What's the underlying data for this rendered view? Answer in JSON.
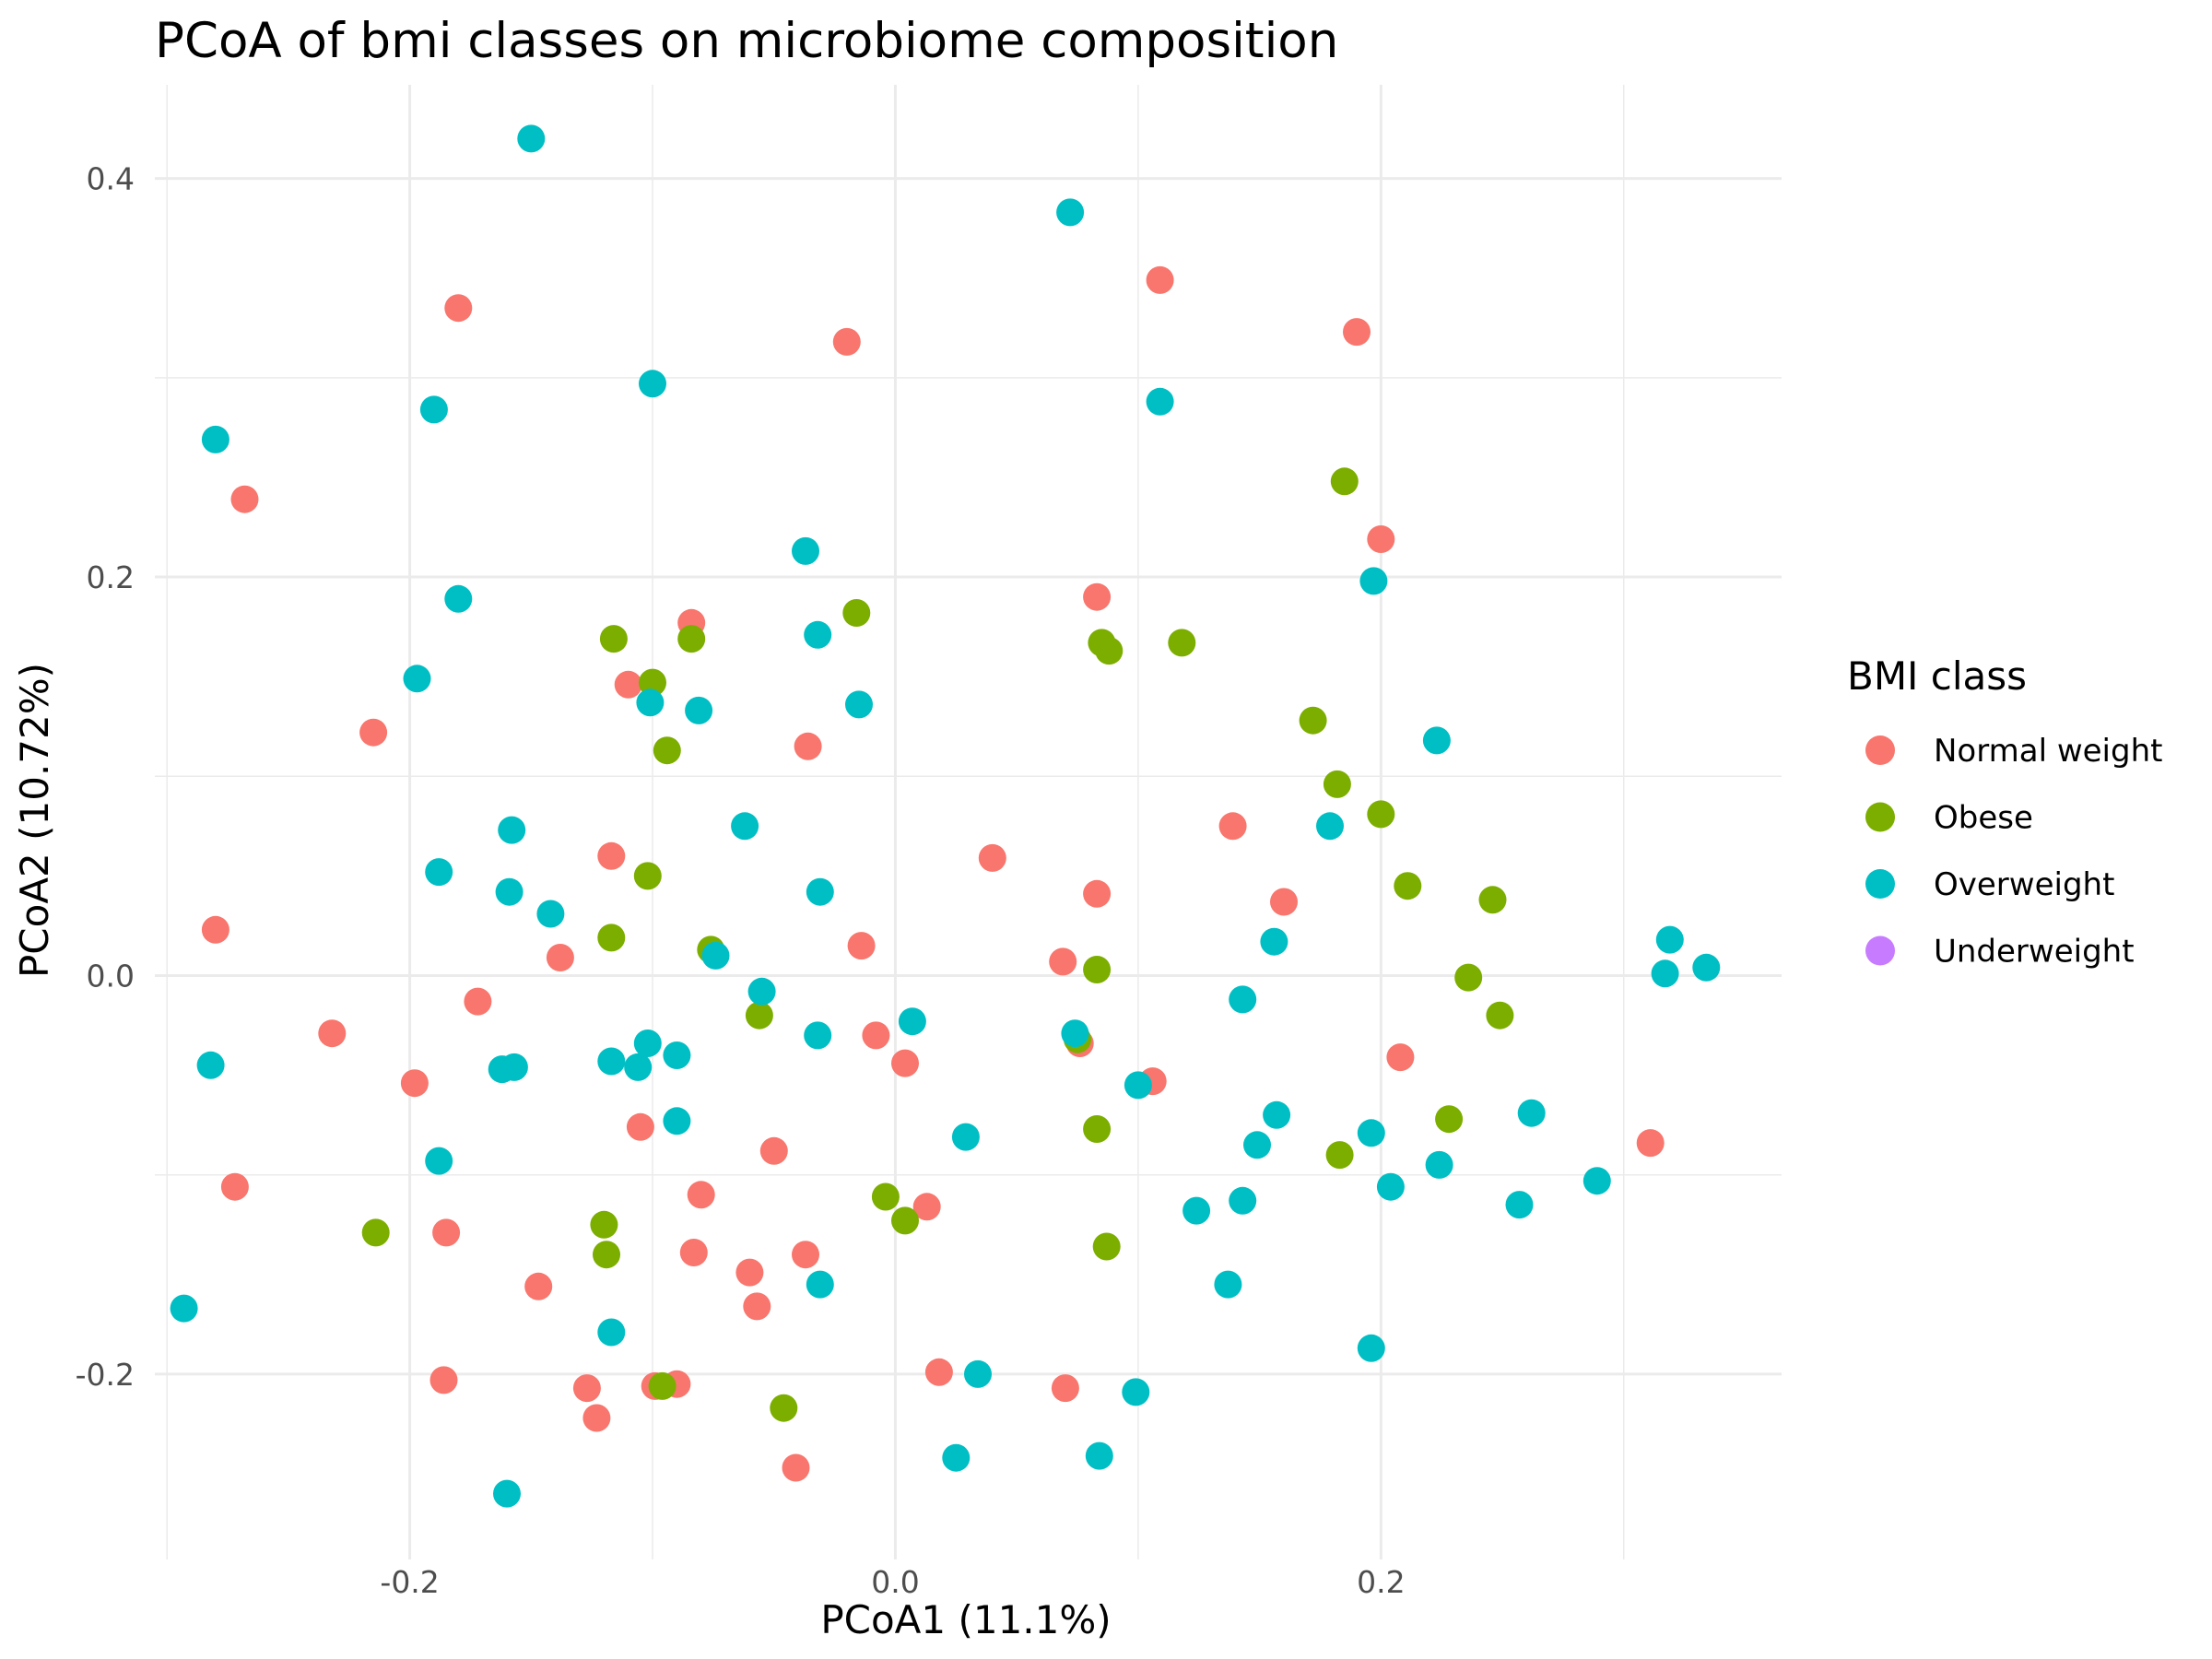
{
  "chart_data": {
    "type": "scatter",
    "title": "PCoA of bmi classes on microbiome composition",
    "xlabel": "PCoA1 (11.1%)",
    "ylabel": "PCoA2 (10.72%)",
    "xlim": [
      -0.305,
      0.365
    ],
    "ylim": [
      -0.293,
      0.447
    ],
    "x_ticks": [
      -0.2,
      0.0,
      0.2
    ],
    "y_ticks": [
      0.4,
      0.2,
      0.0,
      -0.2
    ],
    "x_tick_labels": [
      "-0.2",
      "0.0",
      "0.2"
    ],
    "y_tick_labels": [
      "0.4",
      "0.2",
      "0.0",
      "-0.2"
    ],
    "grid": true,
    "legend": {
      "title": "BMI class",
      "position": "right",
      "entries": [
        "Normal weight",
        "Obese",
        "Overweight",
        "Underweight"
      ]
    },
    "series": [
      {
        "name": "Normal weight",
        "color": "#F8766D",
        "points": [
          [
            -0.18,
            0.335
          ],
          [
            -0.02,
            0.318
          ],
          [
            0.109,
            0.349
          ],
          [
            0.19,
            0.323
          ],
          [
            -0.268,
            0.239
          ],
          [
            0.2,
            0.219
          ],
          [
            -0.084,
            0.177
          ],
          [
            0.083,
            0.19
          ],
          [
            -0.11,
            0.146
          ],
          [
            -0.215,
            0.122
          ],
          [
            -0.036,
            0.115
          ],
          [
            0.139,
            0.075
          ],
          [
            -0.117,
            0.06
          ],
          [
            0.04,
            0.059
          ],
          [
            0.083,
            0.041
          ],
          [
            0.16,
            0.037
          ],
          [
            -0.28,
            0.023
          ],
          [
            -0.014,
            0.015
          ],
          [
            -0.138,
            0.009
          ],
          [
            0.069,
            0.007
          ],
          [
            -0.172,
            -0.013
          ],
          [
            -0.232,
            -0.029
          ],
          [
            -0.008,
            -0.03
          ],
          [
            0.076,
            -0.034
          ],
          [
            0.004,
            -0.044
          ],
          [
            -0.198,
            -0.054
          ],
          [
            0.106,
            -0.053
          ],
          [
            0.208,
            -0.041
          ],
          [
            -0.105,
            -0.076
          ],
          [
            -0.05,
            -0.088
          ],
          [
            0.311,
            -0.084
          ],
          [
            -0.272,
            -0.106
          ],
          [
            -0.08,
            -0.11
          ],
          [
            0.013,
            -0.116
          ],
          [
            -0.185,
            -0.129
          ],
          [
            -0.083,
            -0.139
          ],
          [
            -0.06,
            -0.149
          ],
          [
            -0.037,
            -0.14
          ],
          [
            -0.147,
            -0.156
          ],
          [
            -0.057,
            -0.166
          ],
          [
            -0.186,
            -0.203
          ],
          [
            -0.127,
            -0.207
          ],
          [
            0.018,
            -0.199
          ],
          [
            0.07,
            -0.207
          ],
          [
            -0.099,
            -0.206
          ],
          [
            -0.09,
            -0.205
          ],
          [
            -0.123,
            -0.222
          ],
          [
            -0.041,
            -0.247
          ]
        ]
      },
      {
        "name": "Obese",
        "color": "#7CAE00",
        "points": [
          [
            0.185,
            0.248
          ],
          [
            -0.016,
            0.182
          ],
          [
            -0.116,
            0.169
          ],
          [
            -0.084,
            0.169
          ],
          [
            0.085,
            0.167
          ],
          [
            0.118,
            0.167
          ],
          [
            0.088,
            0.163
          ],
          [
            -0.1,
            0.147
          ],
          [
            0.172,
            0.128
          ],
          [
            -0.094,
            0.113
          ],
          [
            0.182,
            0.096
          ],
          [
            0.2,
            0.081
          ],
          [
            -0.102,
            0.05
          ],
          [
            0.211,
            0.045
          ],
          [
            0.246,
            0.038
          ],
          [
            -0.117,
            0.019
          ],
          [
            -0.076,
            0.013
          ],
          [
            0.083,
            0.003
          ],
          [
            0.236,
            -0.001
          ],
          [
            -0.056,
            -0.02
          ],
          [
            0.249,
            -0.02
          ],
          [
            0.075,
            -0.032
          ],
          [
            0.228,
            -0.072
          ],
          [
            0.083,
            -0.077
          ],
          [
            0.183,
            -0.09
          ],
          [
            -0.004,
            -0.111
          ],
          [
            0.004,
            -0.123
          ],
          [
            -0.12,
            -0.125
          ],
          [
            -0.214,
            -0.129
          ],
          [
            0.087,
            -0.136
          ],
          [
            -0.119,
            -0.14
          ],
          [
            -0.096,
            -0.206
          ],
          [
            -0.046,
            -0.217
          ]
        ]
      },
      {
        "name": "Overweight",
        "color": "#00BFC4",
        "points": [
          [
            -0.15,
            0.42
          ],
          [
            0.072,
            0.383
          ],
          [
            -0.1,
            0.297
          ],
          [
            -0.19,
            0.284
          ],
          [
            0.109,
            0.288
          ],
          [
            -0.28,
            0.269
          ],
          [
            -0.037,
            0.213
          ],
          [
            0.197,
            0.198
          ],
          [
            -0.18,
            0.189
          ],
          [
            -0.032,
            0.171
          ],
          [
            -0.197,
            0.149
          ],
          [
            -0.101,
            0.137
          ],
          [
            -0.081,
            0.133
          ],
          [
            -0.015,
            0.136
          ],
          [
            0.223,
            0.118
          ],
          [
            -0.158,
            0.073
          ],
          [
            -0.062,
            0.075
          ],
          [
            0.179,
            0.075
          ],
          [
            -0.188,
            0.052
          ],
          [
            -0.159,
            0.042
          ],
          [
            -0.031,
            0.042
          ],
          [
            -0.142,
            0.031
          ],
          [
            0.156,
            0.017
          ],
          [
            0.319,
            0.018
          ],
          [
            -0.074,
            0.01
          ],
          [
            0.317,
            0.001
          ],
          [
            0.334,
            0.004
          ],
          [
            -0.055,
            -0.008
          ],
          [
            0.143,
            -0.012
          ],
          [
            0.007,
            -0.023
          ],
          [
            0.074,
            -0.029
          ],
          [
            -0.032,
            -0.03
          ],
          [
            -0.102,
            -0.034
          ],
          [
            -0.282,
            -0.045
          ],
          [
            -0.117,
            -0.043
          ],
          [
            -0.09,
            -0.04
          ],
          [
            -0.106,
            -0.046
          ],
          [
            -0.162,
            -0.047
          ],
          [
            -0.157,
            -0.046
          ],
          [
            0.1,
            -0.055
          ],
          [
            -0.09,
            -0.073
          ],
          [
            0.157,
            -0.07
          ],
          [
            0.262,
            -0.069
          ],
          [
            0.029,
            -0.081
          ],
          [
            0.196,
            -0.079
          ],
          [
            0.149,
            -0.085
          ],
          [
            -0.188,
            -0.093
          ],
          [
            0.224,
            -0.095
          ],
          [
            0.204,
            -0.106
          ],
          [
            0.289,
            -0.103
          ],
          [
            0.143,
            -0.113
          ],
          [
            0.257,
            -0.115
          ],
          [
            0.124,
            -0.118
          ],
          [
            -0.031,
            -0.155
          ],
          [
            0.137,
            -0.155
          ],
          [
            -0.293,
            -0.167
          ],
          [
            -0.117,
            -0.179
          ],
          [
            0.196,
            -0.187
          ],
          [
            0.034,
            -0.2
          ],
          [
            0.099,
            -0.209
          ],
          [
            0.084,
            -0.241
          ],
          [
            0.025,
            -0.242
          ],
          [
            -0.16,
            -0.26
          ]
        ]
      },
      {
        "name": "Underweight",
        "color": "#C77CFF",
        "points": []
      }
    ]
  }
}
